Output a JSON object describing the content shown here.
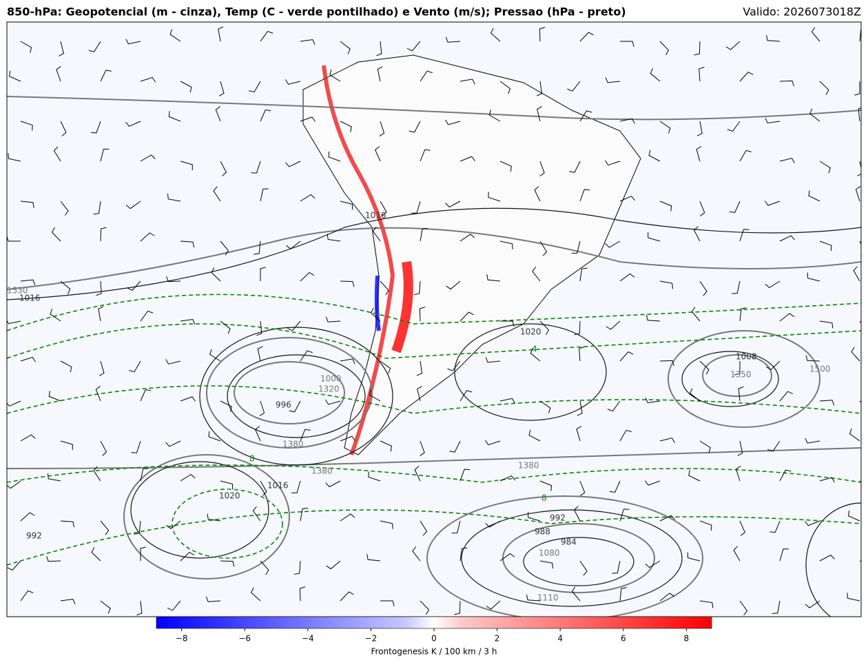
{
  "header": {
    "title": "850-hPa: Geopotencial (m - cinza), Temp (C - verde pontilhado) e Vento (m/s); Pressao (hPa - preto)",
    "valid": "Valido: 2026073018Z"
  },
  "map": {
    "contour_labels": [
      "1530",
      "1016",
      "1016",
      "1320",
      "1000",
      "996",
      "1380",
      "1380",
      "1016",
      "1020",
      "992",
      "1020",
      "1008",
      "1350",
      "1500",
      "1380",
      "992",
      "988",
      "984",
      "1080",
      "1110",
      "8",
      "4",
      "8"
    ]
  },
  "colorbar": {
    "range": [
      -8.8,
      8.8
    ],
    "ticks": [
      {
        "value": -8,
        "label": "−8"
      },
      {
        "value": -6,
        "label": "−6"
      },
      {
        "value": -4,
        "label": "−4"
      },
      {
        "value": -2,
        "label": "−2"
      },
      0,
      2,
      4,
      6,
      8
    ],
    "label": "Frontogenesis K / 100 km / 3 h"
  }
}
